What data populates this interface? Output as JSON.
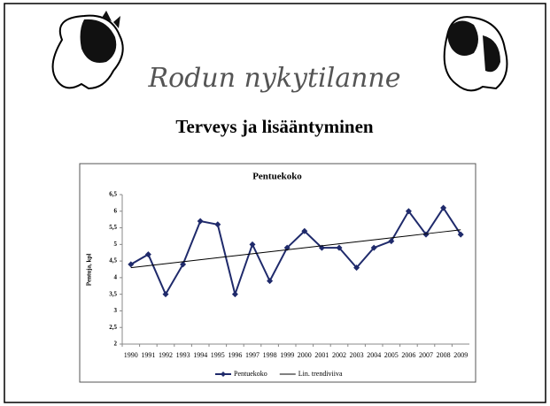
{
  "slide": {
    "title": "Rodun nykytilanne",
    "subtitle": "Terveys ja lisääntyminen"
  },
  "chart_data": {
    "type": "line",
    "title": "Pentuekoko",
    "y_label": "Pentuja, kpl",
    "categories": [
      "1990",
      "1991",
      "1992",
      "1993",
      "1994",
      "1995",
      "1996",
      "1997",
      "1998",
      "1999",
      "2000",
      "2001",
      "2002",
      "2003",
      "2004",
      "2005",
      "2006",
      "2007",
      "2008",
      "2009"
    ],
    "series": [
      {
        "name": "Pentuekoko",
        "color": "#1f2a6b",
        "marker": "diamond",
        "values": [
          4.4,
          4.7,
          3.5,
          4.4,
          5.7,
          5.6,
          3.5,
          5.0,
          3.9,
          4.9,
          5.4,
          4.9,
          4.9,
          4.3,
          4.9,
          5.1,
          6.0,
          5.3,
          6.1,
          5.3
        ]
      },
      {
        "name": "Lin. trendiviiva",
        "color": "#000000",
        "values": [
          4.3,
          4.36,
          4.42,
          4.48,
          4.54,
          4.6,
          4.66,
          4.72,
          4.78,
          4.84,
          4.9,
          4.96,
          5.02,
          5.08,
          5.14,
          5.2,
          5.26,
          5.32,
          5.38,
          5.44
        ]
      }
    ],
    "ylim": [
      2,
      6.5
    ],
    "yticks": [
      2,
      {
        "value": 2.5,
        "label": "2,5"
      },
      3,
      {
        "value": 3.5,
        "label": "3,5"
      },
      4,
      {
        "value": 4.5,
        "label": "4,5"
      },
      5,
      {
        "value": 5.5,
        "label": "5,5"
      },
      6,
      {
        "value": 6.5,
        "label": "6,5"
      }
    ],
    "grid": false,
    "legend": "bottom"
  }
}
